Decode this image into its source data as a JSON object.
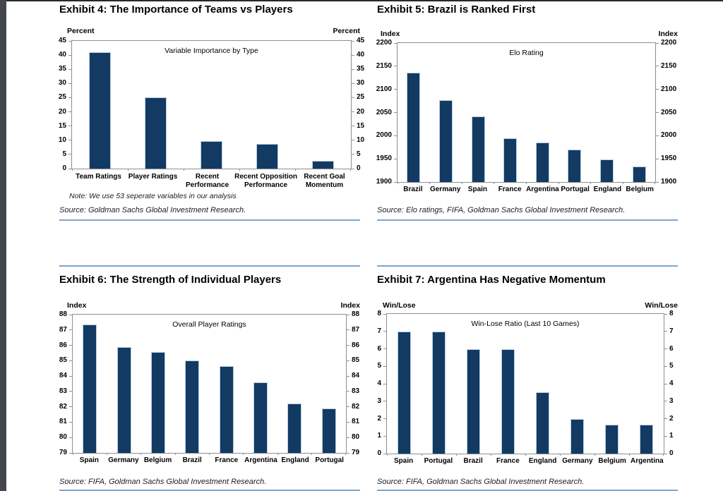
{
  "page": {
    "bar_color": "#123a63",
    "bar_edge_color": "#b9cde0",
    "axis_color": "#8f8f8f",
    "rule_color": "#7fa5c9",
    "page_edge_top_color": "#26282b",
    "page_edge_left_color": "#43474c"
  },
  "exhibits": [
    {
      "title": "Exhibit 4: The Importance of Teams vs Players",
      "note": "Note: We use 53 seperate variables in our analysis",
      "source": "Source: Goldman Sachs Global Investment Research."
    },
    {
      "title": "Exhibit 5: Brazil is Ranked First",
      "source": "Source:  Elo ratings, FIFA, Goldman Sachs Global Investment Research."
    },
    {
      "title": "Exhibit 6:  The Strength of Individual Players",
      "source": "Source: FIFA, Goldman Sachs Global Investment Research."
    },
    {
      "title": "Exhibit 7:  Argentina Has Negative Momentum",
      "source": "Source: FIFA, Goldman Sachs Global Investment Research."
    }
  ],
  "chart_data": [
    {
      "type": "bar",
      "title": "Variable Importance by Type",
      "unit_label": "Percent",
      "categories": [
        "Team Ratings",
        "Player Ratings",
        "Recent\nPerformance",
        "Recent Opposition\nPerformance",
        "Recent Goal\nMomentum"
      ],
      "values": [
        41,
        25.2,
        9.7,
        8.8,
        2.8
      ],
      "ylim": [
        0,
        45
      ],
      "ytick_step": 5,
      "grid": false,
      "legend": null,
      "axes_mirrored": true
    },
    {
      "type": "bar",
      "title": "Elo Rating",
      "unit_label": "Index",
      "categories": [
        "Brazil",
        "Germany",
        "Spain",
        "France",
        "Argentina",
        "Portugal",
        "England",
        "Belgium"
      ],
      "values": [
        2136,
        2076,
        2042,
        1995,
        1986,
        1970,
        1948,
        1933
      ],
      "ylim": [
        1900,
        2200
      ],
      "ytick_step": 50,
      "grid": false,
      "legend": null,
      "axes_mirrored": true
    },
    {
      "type": "bar",
      "title": "Overall Player Ratings",
      "unit_label": "Index",
      "categories": [
        "Spain",
        "Germany",
        "Belgium",
        "Brazil",
        "France",
        "Argentina",
        "England",
        "Portugal"
      ],
      "values": [
        87.35,
        85.9,
        85.55,
        85.0,
        84.65,
        83.6,
        82.2,
        81.9
      ],
      "ylim": [
        79,
        88
      ],
      "ytick_step": 1,
      "grid": false,
      "legend": null,
      "axes_mirrored": true
    },
    {
      "type": "bar",
      "title": "Win-Lose Ratio (Last 10 Games)",
      "unit_label": "Win/Lose",
      "categories": [
        "Spain",
        "Portugal",
        "Brazil",
        "France",
        "England",
        "Germany",
        "Belgium",
        "Argentina"
      ],
      "values": [
        7,
        7,
        6,
        6,
        3.5,
        2,
        1.65,
        1.65
      ],
      "ylim": [
        0,
        8
      ],
      "ytick_step": 1,
      "grid": false,
      "legend": null,
      "axes_mirrored": true
    }
  ]
}
